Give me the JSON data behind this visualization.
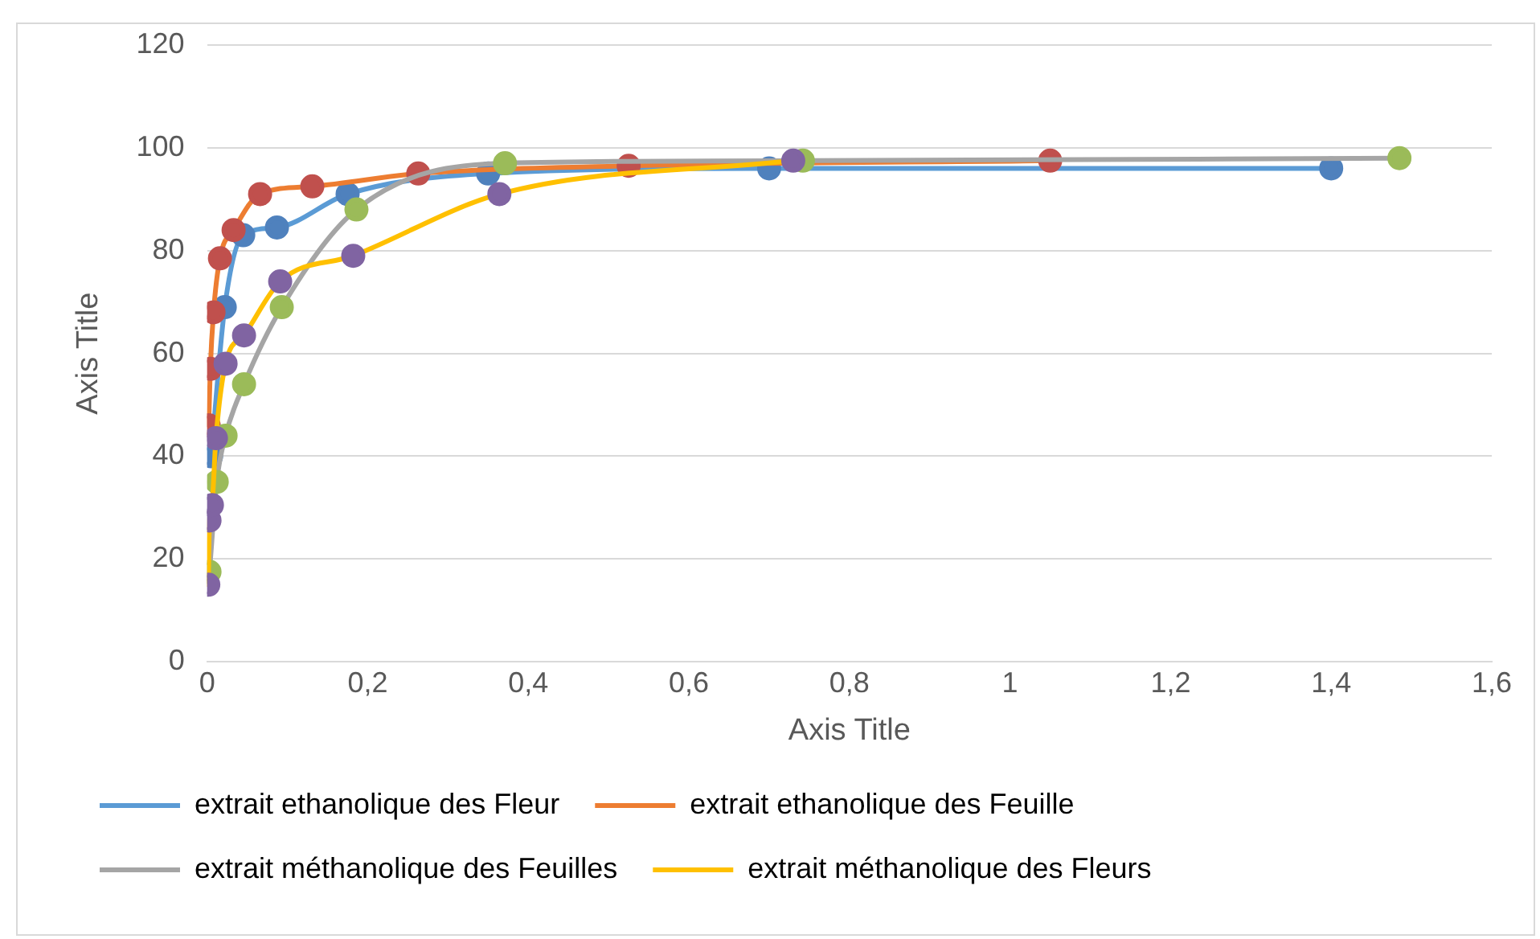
{
  "chart_data": {
    "type": "line",
    "xlabel": "Axis Title",
    "ylabel": "Axis Title",
    "xlim": [
      0,
      1.6
    ],
    "xticks": [
      0,
      {
        "value": 0.2,
        "label": "0,2"
      },
      {
        "value": 0.4,
        "label": "0,4"
      },
      {
        "value": 0.6,
        "label": "0,6"
      },
      {
        "value": 0.8,
        "label": "0,8"
      },
      1,
      {
        "value": 1.2,
        "label": "1,2"
      },
      {
        "value": 1.4,
        "label": "1,4"
      },
      {
        "value": 1.6,
        "label": "1,6"
      }
    ],
    "ylim": [
      0,
      120
    ],
    "yticks": [
      0,
      20,
      40,
      60,
      80,
      100,
      120
    ],
    "grid": "y",
    "legend": "bottom",
    "marker": "circle",
    "line_style": "solid",
    "series": [
      {
        "name": "extrait ethanolique des Fleur",
        "color": "#5b9bd5",
        "colors": [
          "#4f81bd",
          "#4f81bd",
          "#4f81bd",
          "#4f81bd",
          "#4f81bd",
          "#4f81bd",
          "#4f81bd",
          "#4f81bd"
        ],
        "x": [
          0.005,
          0.022,
          0.045,
          0.087,
          0.175,
          0.35,
          0.7,
          1.4
        ],
        "values": [
          40,
          69,
          83,
          84.5,
          91,
          95,
          96,
          96
        ]
      },
      {
        "name": "extrait ethanolique des Feuille",
        "color": "#ed7d31",
        "colors": [
          "#c0504d",
          "#c0504d",
          "#c0504d",
          "#c0504d",
          "#c0504d",
          "#c0504d",
          "#c0504d",
          "#c0504d",
          "#c0504d",
          "#c0504d"
        ],
        "x": [
          0.002,
          0.004,
          0.008,
          0.016,
          0.033,
          0.066,
          0.131,
          0.263,
          0.525,
          1.05
        ],
        "values": [
          46,
          57,
          68,
          78.5,
          84,
          91,
          92.5,
          95,
          96.5,
          97.5
        ]
      },
      {
        "name": "extrait méthanolique des Feuilles",
        "color": "#a5a5a5",
        "colors": [
          "#9bbb59",
          "#9bbb59",
          "#9bbb59",
          "#9bbb59",
          "#9bbb59",
          "#9bbb59",
          "#9bbb59",
          "#9bbb59",
          "#9bbb59"
        ],
        "x": [
          0.003,
          0.012,
          0.023,
          0.046,
          0.093,
          0.186,
          0.371,
          0.742,
          1.485
        ],
        "values": [
          17.5,
          35,
          44,
          54,
          69,
          88,
          97,
          97.5,
          98
        ]
      },
      {
        "name": "extrait méthanolique des Fleurs",
        "color": "#ffc000",
        "colors": [
          "#8064a2",
          "#8064a2",
          "#8064a2",
          "#8064a2",
          "#8064a2",
          "#8064a2",
          "#8064a2",
          "#8064a2",
          "#8064a2",
          "#8064a2"
        ],
        "x": [
          0.0015,
          0.003,
          0.006,
          0.011,
          0.023,
          0.046,
          0.091,
          0.182,
          0.364,
          0.73
        ],
        "values": [
          15,
          27.5,
          30.5,
          43.5,
          58,
          63.5,
          74,
          79,
          91,
          97.5
        ]
      }
    ]
  }
}
